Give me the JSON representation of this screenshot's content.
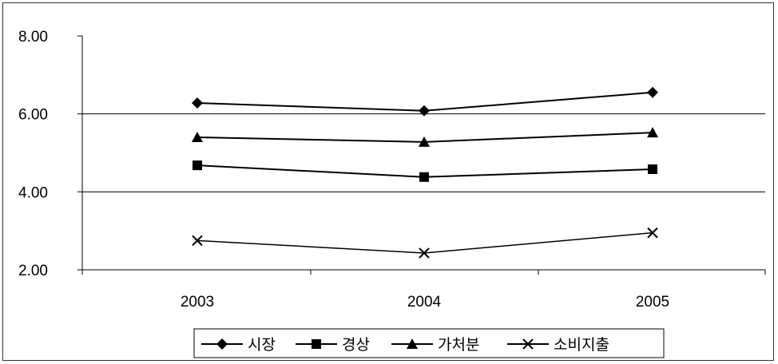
{
  "chart_data": {
    "type": "line",
    "categories": [
      "2003",
      "2004",
      "2005"
    ],
    "ylim": [
      2.0,
      8.0
    ],
    "yticks": [
      "2.00",
      "4.00",
      "6.00",
      "8.00"
    ],
    "ytick_values": [
      2,
      4,
      6,
      8
    ],
    "gridlines_at": [
      4,
      6
    ],
    "legend_position": "bottom",
    "series": [
      {
        "name": "시장",
        "values": [
          6.28,
          6.08,
          6.55
        ],
        "marker": "diamond",
        "color": "#000000"
      },
      {
        "name": "경상",
        "values": [
          4.68,
          4.38,
          4.58
        ],
        "marker": "square",
        "color": "#000000"
      },
      {
        "name": "가처분",
        "values": [
          5.4,
          5.28,
          5.52
        ],
        "marker": "triangle",
        "color": "#000000"
      },
      {
        "name": "소비지출",
        "values": [
          2.75,
          2.43,
          2.95
        ],
        "marker": "x",
        "color": "#000000"
      }
    ]
  }
}
